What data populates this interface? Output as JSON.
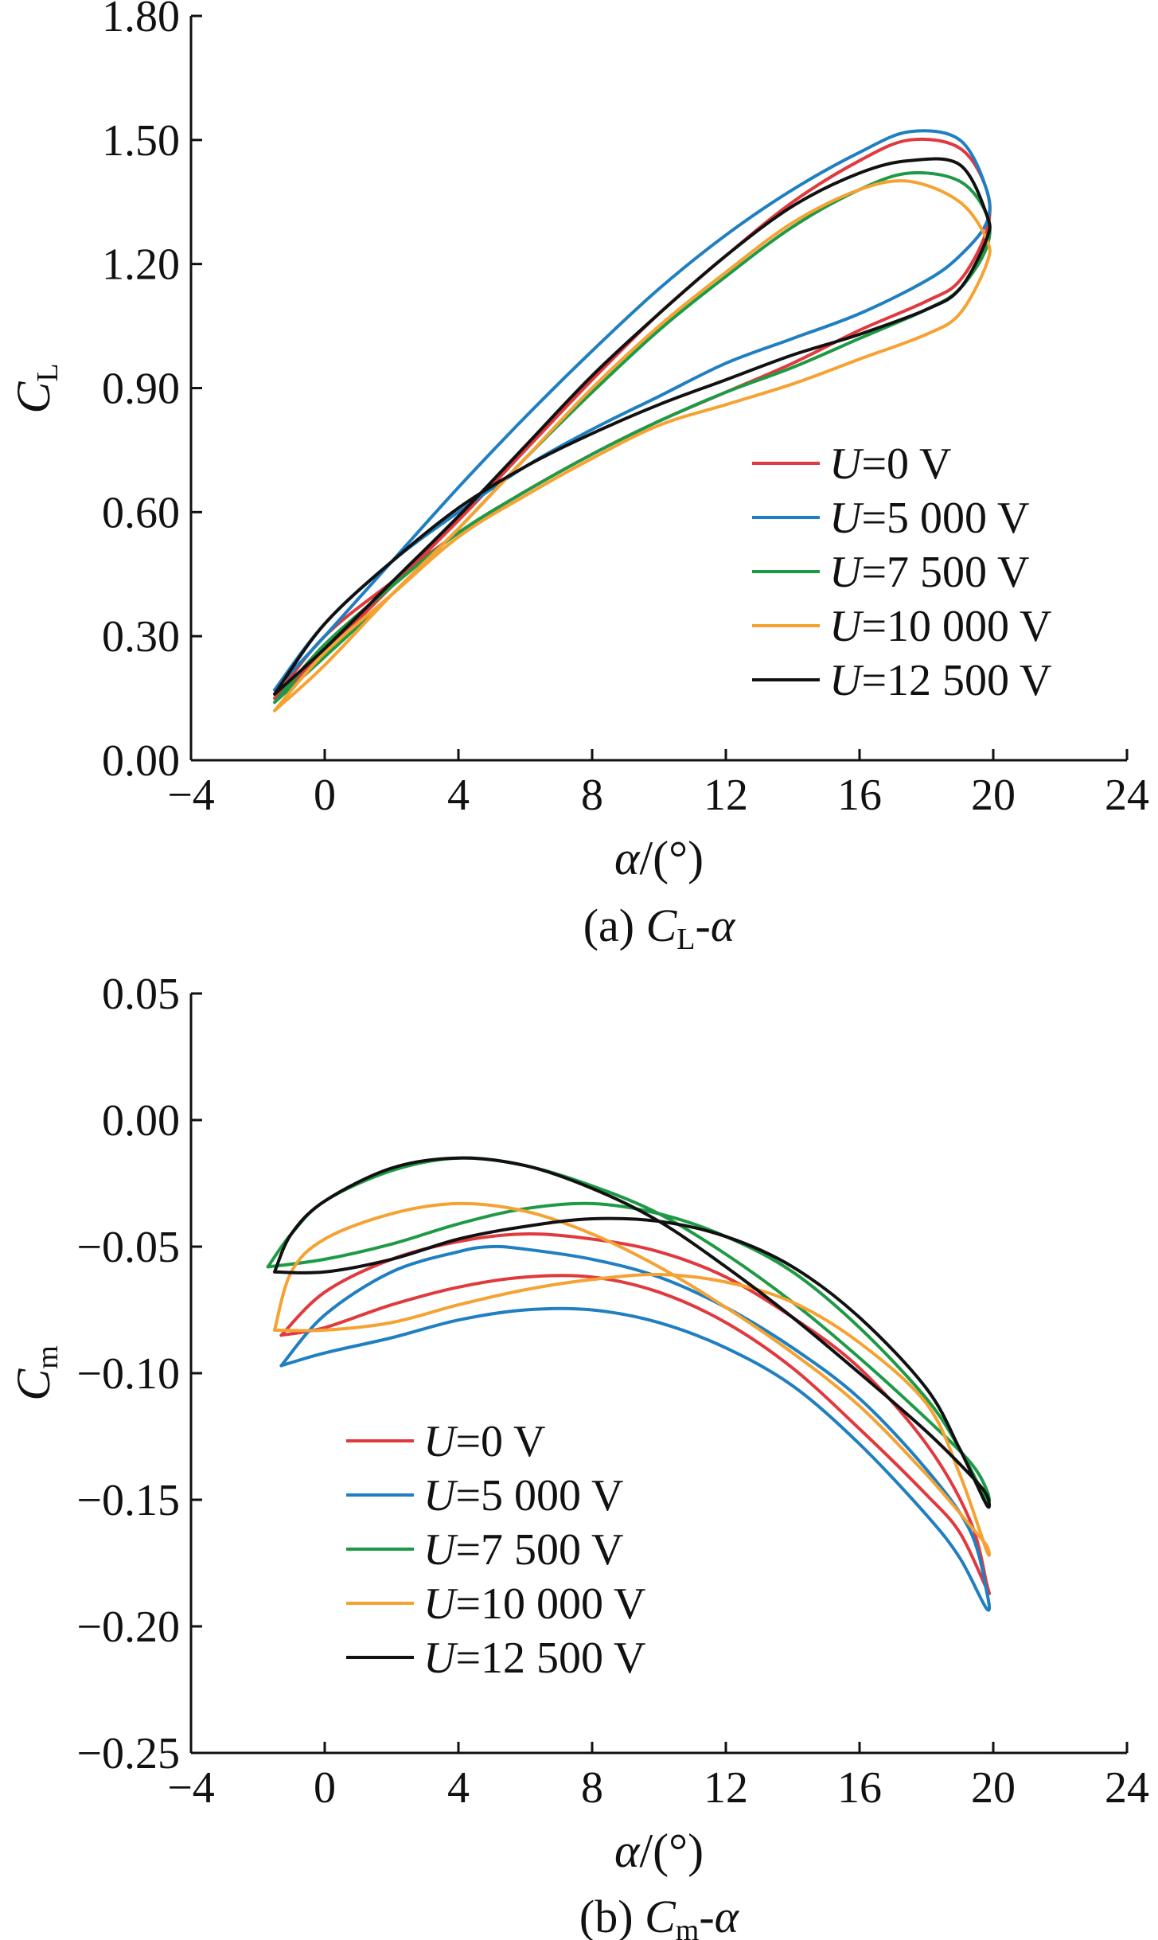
{
  "chart_data": [
    {
      "type": "line",
      "caption": {
        "prefix": "(a) ",
        "sym": "C",
        "sub": "L",
        "suffix": "-α"
      },
      "xlabel": {
        "sym": "α",
        "unit": "/(°)"
      },
      "ylabel": {
        "sym": "C",
        "sub": "L"
      },
      "xlim": [
        -4,
        24
      ],
      "ylim": [
        0,
        1.8
      ],
      "xticks": [
        "−4",
        "0",
        "4",
        "8",
        "12",
        "16",
        "20",
        "24"
      ],
      "xtick_values": [
        -4,
        0,
        4,
        8,
        12,
        16,
        20,
        24
      ],
      "yticks": [
        "0.00",
        "0.30",
        "0.60",
        "0.90",
        "1.20",
        "1.50",
        "1.80"
      ],
      "ytick_values": [
        0,
        0.3,
        0.6,
        0.9,
        1.2,
        1.5,
        1.8
      ],
      "grid": false,
      "legend_position": "right",
      "series": [
        {
          "name_sym": "U",
          "name_rest": "=0 V",
          "color": "#e0393e",
          "x": [
            -1.5,
            0,
            2,
            4,
            6,
            8,
            10,
            12,
            14,
            16,
            17.5,
            19,
            19.8,
            19.8,
            19,
            18,
            16,
            14,
            12,
            10,
            8,
            6,
            4,
            2,
            0,
            -1.5
          ],
          "y": [
            0.15,
            0.26,
            0.42,
            0.58,
            0.75,
            0.92,
            1.08,
            1.22,
            1.35,
            1.45,
            1.5,
            1.48,
            1.38,
            1.28,
            1.16,
            1.11,
            1.04,
            0.96,
            0.89,
            0.82,
            0.74,
            0.65,
            0.55,
            0.43,
            0.3,
            0.15
          ]
        },
        {
          "name_sym": "U",
          "name_rest": "=5 000 V",
          "color": "#1f7fc0",
          "x": [
            -1.5,
            0,
            2,
            4,
            6,
            8,
            10,
            12,
            14,
            16,
            17.5,
            19,
            19.8,
            19.8,
            19,
            18,
            16,
            14,
            12,
            10,
            8,
            6,
            4,
            2,
            0,
            -1.5
          ],
          "y": [
            0.17,
            0.3,
            0.48,
            0.66,
            0.83,
            0.99,
            1.14,
            1.27,
            1.38,
            1.47,
            1.52,
            1.5,
            1.38,
            1.3,
            1.22,
            1.16,
            1.08,
            1.02,
            0.96,
            0.88,
            0.8,
            0.71,
            0.6,
            0.48,
            0.33,
            0.17
          ]
        },
        {
          "name_sym": "U",
          "name_rest": "=7 500 V",
          "color": "#1e9a46",
          "x": [
            -1.5,
            0,
            2,
            4,
            6,
            8,
            10,
            12,
            14,
            16,
            17.5,
            19,
            19.8,
            19.8,
            19,
            18,
            16,
            14,
            12,
            10,
            8,
            6,
            4,
            2,
            0,
            -1.5
          ],
          "y": [
            0.14,
            0.25,
            0.4,
            0.56,
            0.73,
            0.89,
            1.04,
            1.17,
            1.29,
            1.38,
            1.42,
            1.4,
            1.32,
            1.24,
            1.14,
            1.09,
            1.02,
            0.95,
            0.89,
            0.82,
            0.74,
            0.65,
            0.55,
            0.42,
            0.28,
            0.14
          ]
        },
        {
          "name_sym": "U",
          "name_rest": "=10 000 V",
          "color": "#f5a233",
          "x": [
            -1.5,
            0,
            2,
            4,
            6,
            8,
            10,
            12,
            14,
            16,
            17.5,
            19,
            19.8,
            19.8,
            19,
            18,
            16,
            14,
            12,
            10,
            8,
            6,
            4,
            2,
            0,
            -1.5
          ],
          "y": [
            0.12,
            0.23,
            0.4,
            0.56,
            0.73,
            0.9,
            1.05,
            1.18,
            1.3,
            1.38,
            1.4,
            1.35,
            1.26,
            1.2,
            1.08,
            1.03,
            0.97,
            0.91,
            0.86,
            0.81,
            0.73,
            0.64,
            0.54,
            0.4,
            0.26,
            0.12
          ]
        },
        {
          "name_sym": "U",
          "name_rest": "=12 500 V",
          "color": "#111111",
          "x": [
            -1.5,
            0,
            2,
            4,
            6,
            8,
            10,
            12,
            14,
            16,
            17.5,
            19,
            19.8,
            19.8,
            19,
            18,
            16,
            14,
            12,
            10,
            8,
            6,
            4,
            2,
            0,
            -1.5
          ],
          "y": [
            0.16,
            0.27,
            0.43,
            0.59,
            0.76,
            0.93,
            1.08,
            1.22,
            1.34,
            1.42,
            1.45,
            1.44,
            1.32,
            1.26,
            1.14,
            1.09,
            1.03,
            0.98,
            0.92,
            0.86,
            0.79,
            0.71,
            0.61,
            0.48,
            0.33,
            0.16
          ]
        }
      ]
    },
    {
      "type": "line",
      "caption": {
        "prefix": "(b) ",
        "sym": "C",
        "sub": "m",
        "suffix": "-α"
      },
      "xlabel": {
        "sym": "α",
        "unit": "/(°)"
      },
      "ylabel": {
        "sym": "C",
        "sub": "m"
      },
      "xlim": [
        -4,
        24
      ],
      "ylim": [
        -0.25,
        0.05
      ],
      "xticks": [
        "−4",
        "0",
        "4",
        "8",
        "12",
        "16",
        "20",
        "24"
      ],
      "xtick_values": [
        -4,
        0,
        4,
        8,
        12,
        16,
        20,
        24
      ],
      "yticks": [
        "−0.25",
        "−0.20",
        "−0.15",
        "−0.10",
        "−0.05",
        "0.00",
        "0.05"
      ],
      "ytick_values": [
        -0.25,
        -0.2,
        -0.15,
        -0.1,
        -0.05,
        0,
        0.05
      ],
      "grid": false,
      "legend_position": "bottom-left",
      "series": [
        {
          "name_sym": "U",
          "name_rest": "=0 V",
          "color": "#e0393e",
          "x": [
            -1.3,
            0,
            2,
            4,
            6,
            8,
            10,
            12,
            14,
            16,
            18,
            19.3,
            19.8,
            19.8,
            19,
            18,
            16,
            14,
            12,
            10,
            8,
            6,
            4,
            2,
            0,
            -1.3
          ],
          "y": [
            -0.085,
            -0.068,
            -0.055,
            -0.048,
            -0.045,
            -0.047,
            -0.052,
            -0.062,
            -0.078,
            -0.098,
            -0.128,
            -0.158,
            -0.183,
            -0.185,
            -0.163,
            -0.148,
            -0.122,
            -0.098,
            -0.08,
            -0.068,
            -0.062,
            -0.062,
            -0.066,
            -0.073,
            -0.082,
            -0.085
          ]
        },
        {
          "name_sym": "U",
          "name_rest": "=5 000 V",
          "color": "#1f7fc0",
          "x": [
            -1.3,
            0,
            2,
            4,
            5,
            6,
            8,
            10,
            12,
            14,
            16,
            18,
            19.3,
            19.8,
            19.8,
            19,
            18,
            16,
            14,
            12,
            10,
            8,
            6,
            4,
            2,
            0,
            -1.3
          ],
          "y": [
            -0.097,
            -0.077,
            -0.06,
            -0.052,
            -0.05,
            -0.051,
            -0.055,
            -0.062,
            -0.074,
            -0.09,
            -0.11,
            -0.138,
            -0.162,
            -0.186,
            -0.193,
            -0.173,
            -0.156,
            -0.128,
            -0.105,
            -0.09,
            -0.08,
            -0.075,
            -0.075,
            -0.079,
            -0.086,
            -0.092,
            -0.097
          ]
        },
        {
          "name_sym": "U",
          "name_rest": "=7 500 V",
          "color": "#1e9a46",
          "x": [
            -1.7,
            -1,
            0,
            2,
            4,
            6,
            8,
            10,
            12,
            14,
            16,
            18,
            19.3,
            19.8,
            19.8,
            19,
            18,
            16,
            14,
            12,
            10,
            8,
            6,
            4,
            2,
            0,
            -1.7
          ],
          "y": [
            -0.058,
            -0.045,
            -0.032,
            -0.02,
            -0.015,
            -0.018,
            -0.026,
            -0.037,
            -0.053,
            -0.072,
            -0.094,
            -0.118,
            -0.135,
            -0.146,
            -0.15,
            -0.13,
            -0.11,
            -0.082,
            -0.06,
            -0.046,
            -0.037,
            -0.033,
            -0.035,
            -0.041,
            -0.049,
            -0.055,
            -0.058
          ]
        },
        {
          "name_sym": "U",
          "name_rest": "=10 000 V",
          "color": "#f5a233",
          "x": [
            -1.5,
            -1,
            0,
            2,
            4,
            6,
            8,
            10,
            12,
            14,
            16,
            18,
            19.3,
            19.8,
            19.8,
            19,
            18,
            16,
            14,
            12,
            10,
            8,
            6,
            4,
            2,
            0,
            -1.5
          ],
          "y": [
            -0.083,
            -0.06,
            -0.047,
            -0.037,
            -0.033,
            -0.036,
            -0.045,
            -0.058,
            -0.074,
            -0.092,
            -0.113,
            -0.14,
            -0.16,
            -0.168,
            -0.17,
            -0.14,
            -0.112,
            -0.088,
            -0.072,
            -0.064,
            -0.061,
            -0.063,
            -0.067,
            -0.073,
            -0.08,
            -0.083,
            -0.083
          ]
        },
        {
          "name_sym": "U",
          "name_rest": "=12 500 V",
          "color": "#111111",
          "x": [
            -1.5,
            -1,
            0,
            2,
            4,
            6,
            8,
            10,
            12,
            14,
            16,
            18,
            19.3,
            19.8,
            19.8,
            19,
            18,
            16,
            14,
            12,
            10,
            8,
            6,
            4,
            2,
            0,
            -1.5
          ],
          "y": [
            -0.06,
            -0.045,
            -0.032,
            -0.019,
            -0.015,
            -0.018,
            -0.027,
            -0.04,
            -0.058,
            -0.078,
            -0.1,
            -0.123,
            -0.14,
            -0.148,
            -0.152,
            -0.13,
            -0.106,
            -0.078,
            -0.058,
            -0.046,
            -0.04,
            -0.039,
            -0.042,
            -0.047,
            -0.055,
            -0.06,
            -0.06
          ]
        }
      ]
    }
  ]
}
